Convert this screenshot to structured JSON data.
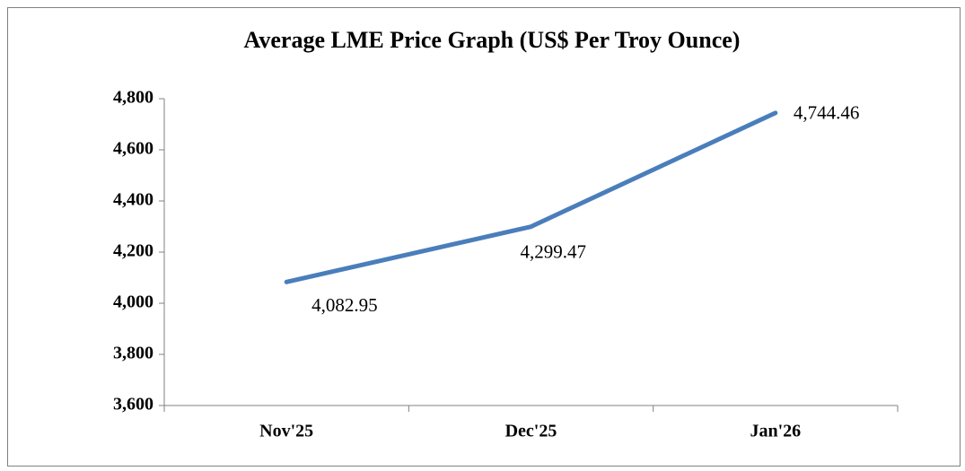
{
  "chart_data": {
    "type": "line",
    "title": "Average LME Price Graph (US$ Per Troy Ounce)",
    "categories": [
      "Nov'25",
      "Dec'25",
      "Jan'26"
    ],
    "values": [
      4082.95,
      4299.47,
      4744.46
    ],
    "value_labels": [
      "4,082.95",
      "4,299.47",
      "4,744.46"
    ],
    "color": "#4a7ebb",
    "ylim": [
      3600,
      4800
    ],
    "yticks": [
      {
        "value": 3600,
        "label": "3,600"
      },
      {
        "value": 3800,
        "label": "3,800"
      },
      {
        "value": 4000,
        "label": "4,000"
      },
      {
        "value": 4200,
        "label": "4,200"
      },
      {
        "value": 4400,
        "label": "4,400"
      },
      {
        "value": 4600,
        "label": "4,600"
      },
      {
        "value": 4800,
        "label": "4,800"
      }
    ]
  }
}
